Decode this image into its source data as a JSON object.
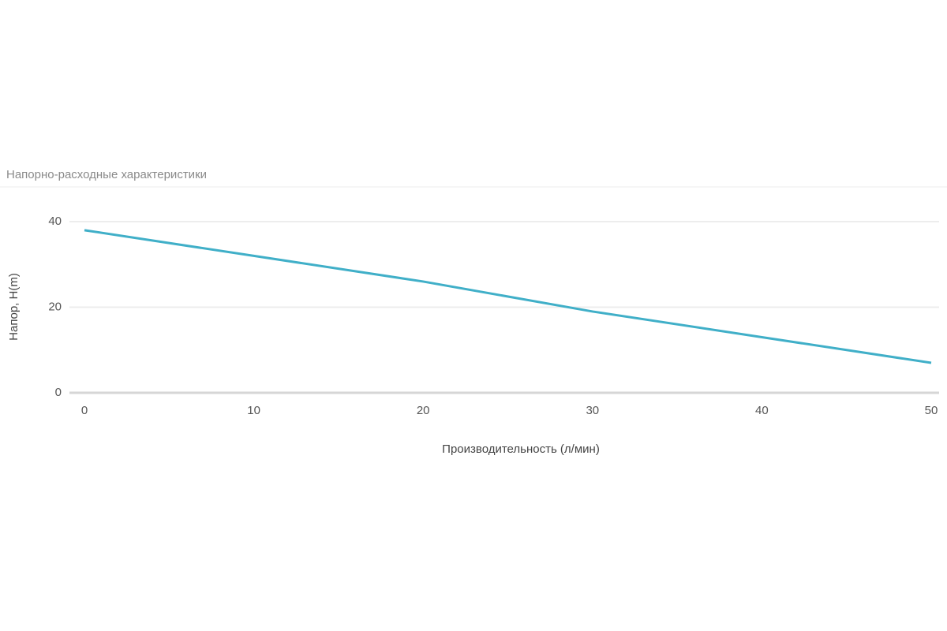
{
  "chart_data": {
    "type": "line",
    "title": "Напорно-расходные характеристики",
    "xlabel": "Производительность (л/мин)",
    "ylabel": "Напор, H(m)",
    "x": [
      0,
      10,
      20,
      30,
      40,
      50
    ],
    "values": [
      38,
      32,
      26,
      19,
      13,
      7
    ],
    "color": "#40afc8",
    "xlim": [
      0,
      50
    ],
    "xticks": [
      0,
      10,
      20,
      30,
      40,
      50
    ],
    "ylim": [
      0,
      40
    ],
    "yticks": [
      0,
      20,
      40
    ],
    "grid": true
  }
}
